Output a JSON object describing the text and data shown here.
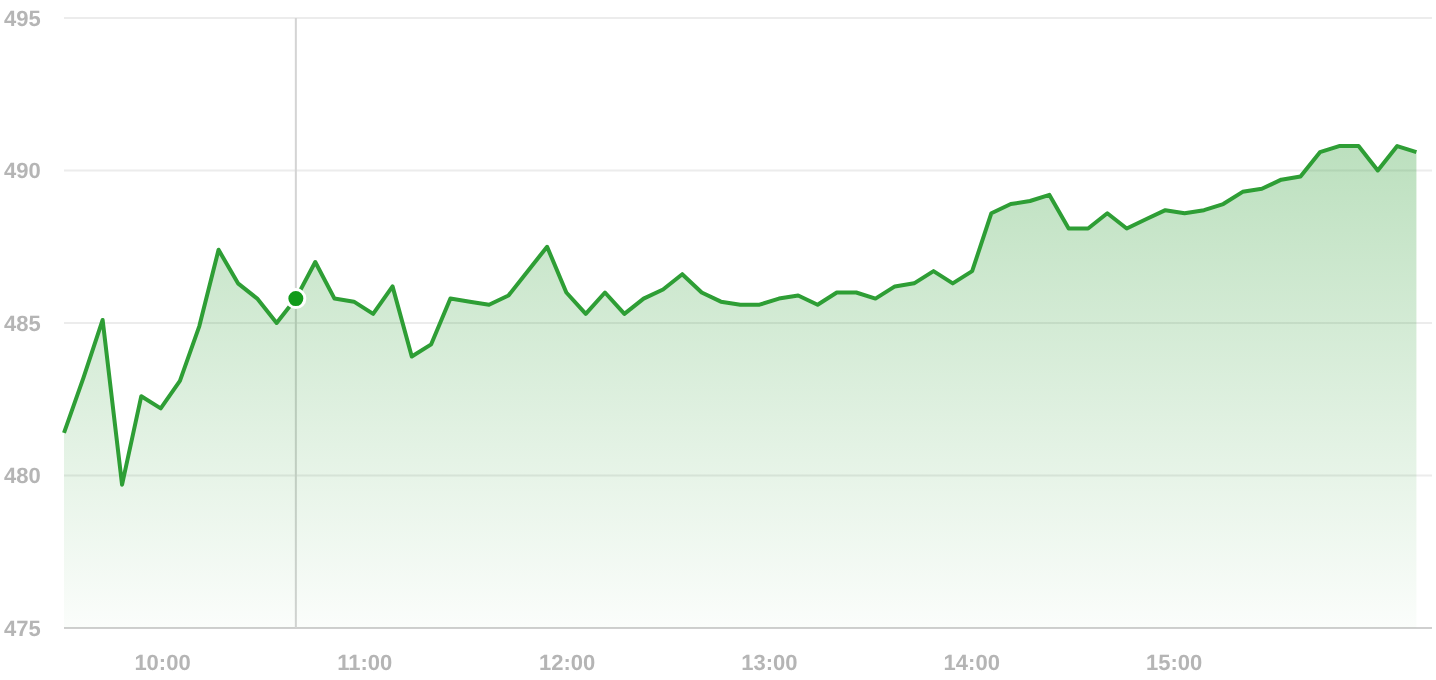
{
  "chart_data": {
    "type": "area",
    "x": [
      9.513,
      9.609,
      9.704,
      9.8,
      9.895,
      9.991,
      10.086,
      10.182,
      10.277,
      10.373,
      10.468,
      10.564,
      10.659,
      10.755,
      10.85,
      10.946,
      11.041,
      11.137,
      11.232,
      11.328,
      11.423,
      11.519,
      11.614,
      11.71,
      11.805,
      11.901,
      11.996,
      12.092,
      12.187,
      12.283,
      12.378,
      12.474,
      12.569,
      12.665,
      12.76,
      12.856,
      12.951,
      13.047,
      13.142,
      13.238,
      13.333,
      13.429,
      13.524,
      13.62,
      13.715,
      13.811,
      13.906,
      14.002,
      14.097,
      14.193,
      14.288,
      14.384,
      14.479,
      14.575,
      14.67,
      14.766,
      14.861,
      14.957,
      15.052,
      15.148,
      15.243,
      15.339,
      15.434,
      15.53,
      15.625,
      15.721,
      15.816,
      15.912,
      16.007,
      16.103,
      16.198
    ],
    "series": [
      {
        "color": "#2e9e35",
        "values": [
          481.4,
          483.2,
          485.1,
          479.7,
          482.6,
          482.2,
          483.1,
          484.9,
          487.4,
          486.3,
          485.8,
          485.0,
          485.8,
          487.0,
          485.8,
          485.7,
          485.3,
          486.2,
          483.9,
          484.3,
          485.8,
          485.7,
          485.6,
          485.9,
          486.7,
          487.5,
          486.0,
          485.3,
          486.0,
          485.3,
          485.8,
          486.1,
          486.6,
          486.0,
          485.7,
          485.6,
          485.6,
          485.8,
          485.9,
          485.6,
          486.0,
          486.0,
          485.8,
          486.2,
          486.3,
          486.7,
          486.3,
          486.7,
          488.6,
          488.9,
          489.0,
          489.2,
          488.1,
          488.1,
          488.6,
          488.1,
          488.4,
          488.7,
          488.6,
          488.7,
          488.9,
          489.3,
          489.4,
          489.7,
          489.8,
          490.6,
          490.8,
          490.8,
          490.0,
          490.8,
          490.6
        ]
      },
      {
        "type": "scatter",
        "color": "#119a1a",
        "x": [
          10.659
        ],
        "values": [
          485.8
        ]
      }
    ],
    "xlim": [
      9.513,
      16.275
    ],
    "xticks": [
      {
        "value": 10,
        "label": "10:00"
      },
      {
        "value": 11,
        "label": "11:00"
      },
      {
        "value": 12,
        "label": "12:00"
      },
      {
        "value": 13,
        "label": "13:00"
      },
      {
        "value": 14,
        "label": "14:00"
      },
      {
        "value": 15,
        "label": "15:00"
      }
    ],
    "ylim": [
      475,
      495
    ],
    "yticks": [
      475,
      480,
      485,
      490,
      495
    ],
    "grid": "y",
    "ref_lines": [
      {
        "axis": "x",
        "value": 10.659,
        "color": "#d4d4d4"
      }
    ]
  }
}
